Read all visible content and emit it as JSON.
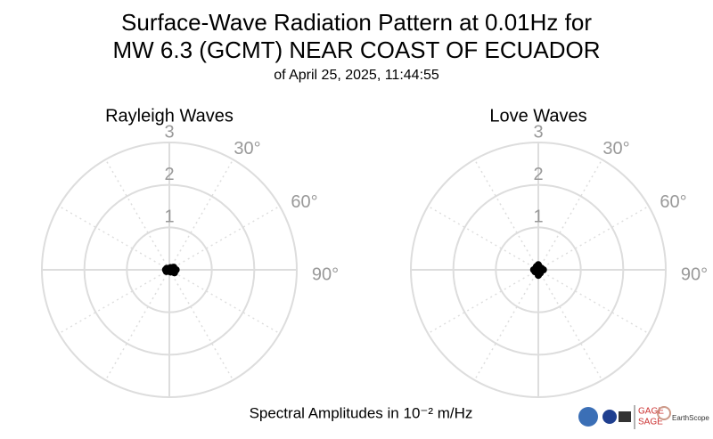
{
  "title": [
    "Surface-Wave Radiation Pattern at 0.01Hz for",
    "MW 6.3 (GCMT) NEAR COAST OF ECUADOR"
  ],
  "subtitle": "of April 25, 2025, 11:44:55",
  "footer": "Spectral Amplitudes in 10⁻² m/Hz",
  "logos": [
    "GAGE",
    "SAGE",
    "EarthScope"
  ],
  "chart_data": [
    {
      "type": "polar",
      "title": "Rayleigh Waves",
      "color": "#000000",
      "grid": true,
      "rlim": [
        0,
        3
      ],
      "rticks": [
        1,
        2,
        3
      ],
      "thetaticks": [
        {
          "value": 30,
          "label": "30°"
        },
        {
          "value": 60,
          "label": "60°"
        },
        {
          "value": 90,
          "label": "90°"
        }
      ],
      "theta": [
        0,
        30,
        60,
        90,
        120,
        150,
        180,
        210,
        240,
        270,
        300,
        330
      ],
      "r": [
        0.03,
        0.06,
        0.12,
        0.16,
        0.14,
        0.06,
        0.03,
        0.04,
        0.08,
        0.09,
        0.07,
        0.03
      ]
    },
    {
      "type": "polar",
      "title": "Love Waves",
      "color": "#000000",
      "grid": true,
      "rlim": [
        0,
        3
      ],
      "rticks": [
        1,
        2,
        3
      ],
      "thetaticks": [
        {
          "value": 30,
          "label": "30°"
        },
        {
          "value": 60,
          "label": "60°"
        },
        {
          "value": 90,
          "label": "90°"
        }
      ],
      "theta": [
        0,
        30,
        60,
        90,
        120,
        150,
        180,
        210,
        240,
        270,
        300,
        330
      ],
      "r": [
        0.12,
        0.05,
        0.08,
        0.12,
        0.06,
        0.09,
        0.13,
        0.05,
        0.09,
        0.11,
        0.06,
        0.09
      ]
    }
  ]
}
